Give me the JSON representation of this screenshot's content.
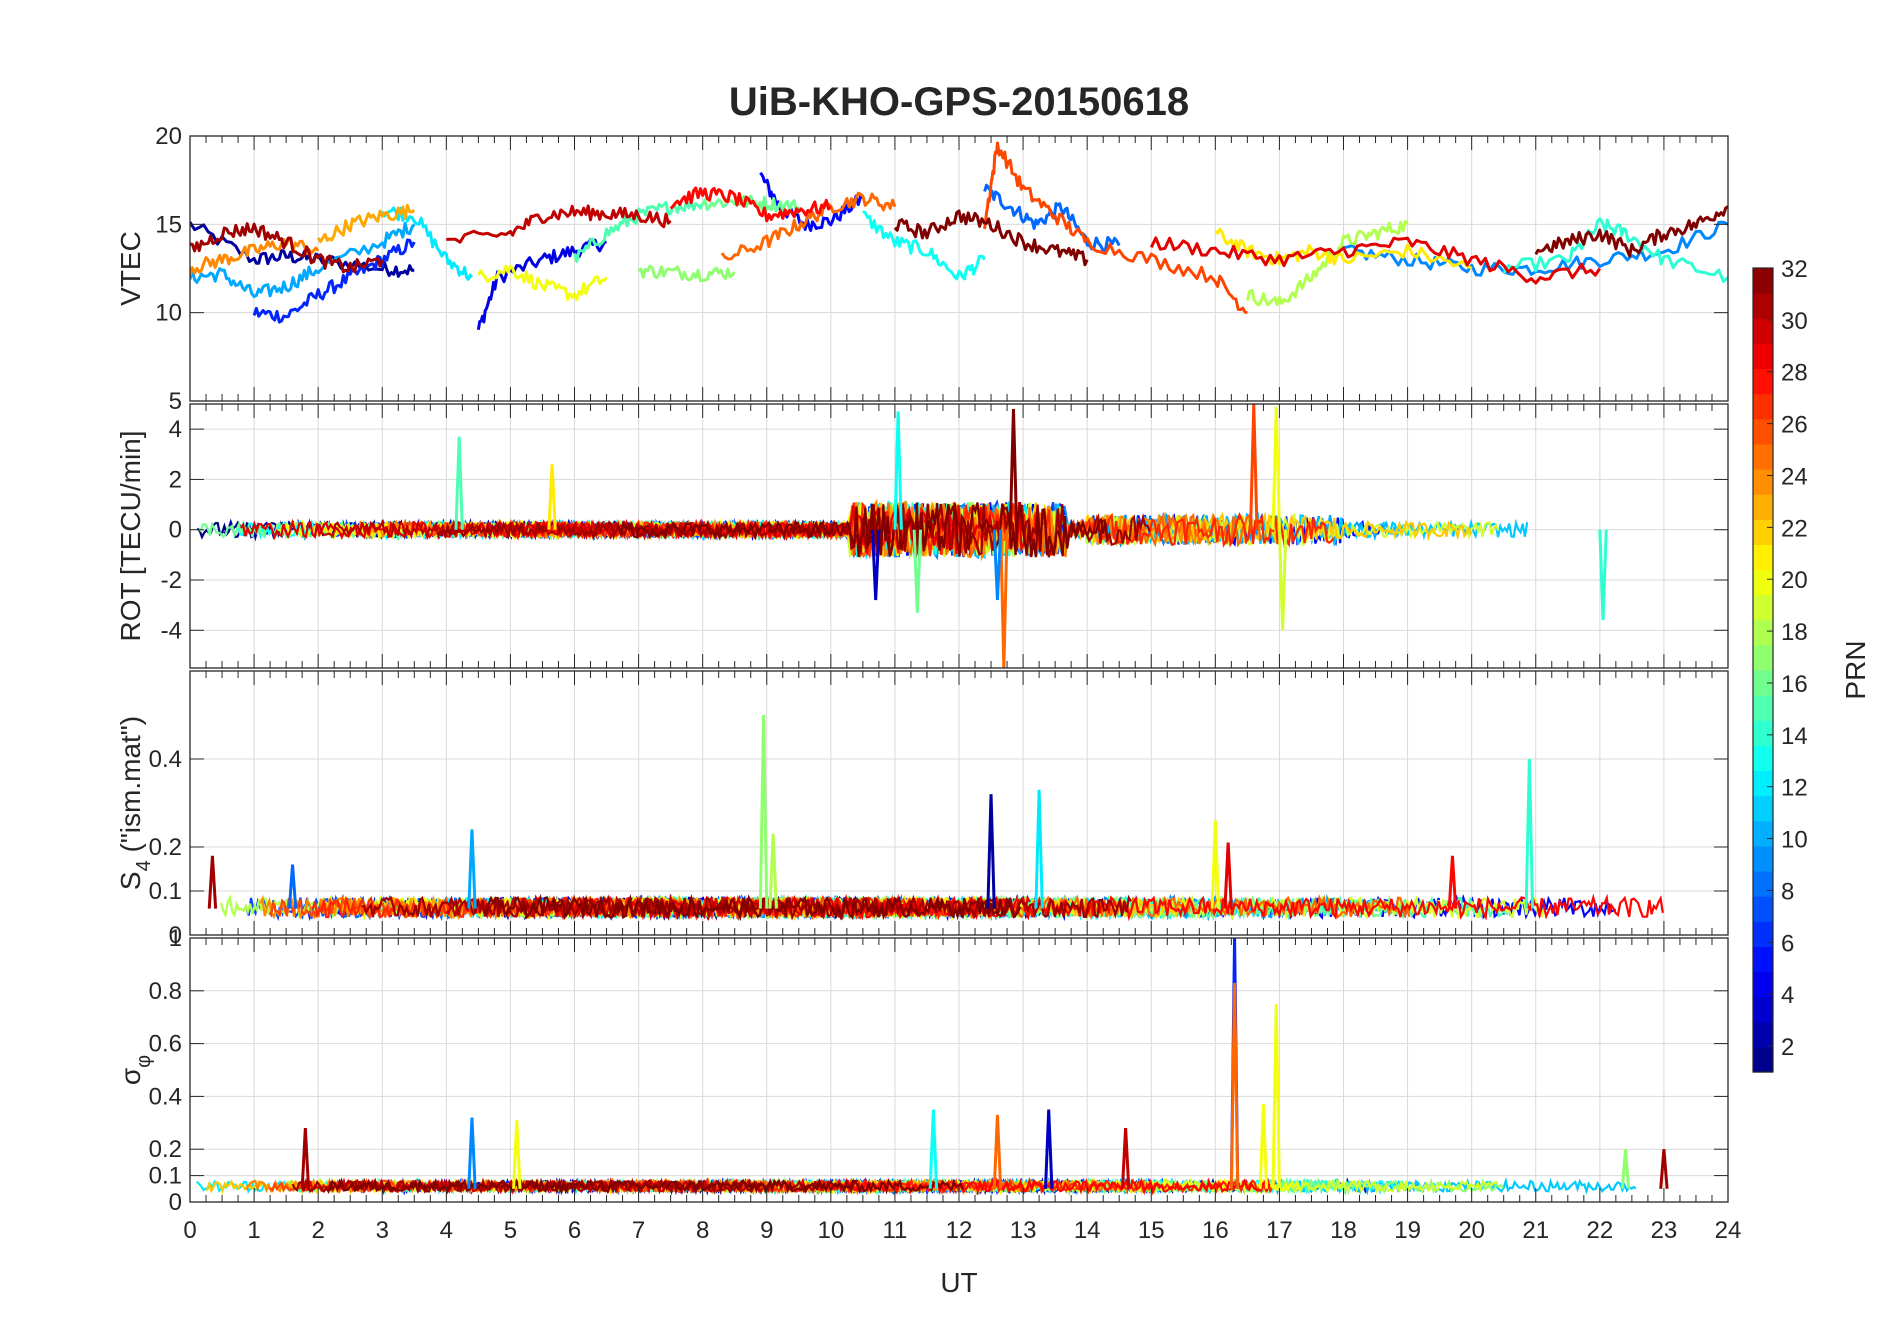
{
  "chart_data": {
    "type": "line",
    "title": "UiB-KHO-GPS-20150618",
    "xlabel": "UT",
    "xlim": [
      0,
      24
    ],
    "xticks": [
      0,
      1,
      2,
      3,
      4,
      5,
      6,
      7,
      8,
      9,
      10,
      11,
      12,
      13,
      14,
      15,
      16,
      17,
      18,
      19,
      20,
      21,
      22,
      23,
      24
    ],
    "xtick_labels": [
      "0",
      "1",
      "2",
      "3",
      "4",
      "5",
      "6",
      "7",
      "8",
      "9",
      "10",
      "11",
      "12",
      "13",
      "14",
      "15",
      "16",
      "17",
      "18",
      "19",
      "20",
      "21",
      "22",
      "23",
      "24"
    ],
    "grid": true,
    "colormap": "jet",
    "colorbar": {
      "label": "PRN",
      "range": [
        1,
        32
      ],
      "ticks": [
        2,
        4,
        6,
        8,
        10,
        12,
        14,
        16,
        18,
        20,
        22,
        24,
        26,
        28,
        30,
        32
      ],
      "tick_labels": [
        "2",
        "4",
        "6",
        "8",
        "10",
        "12",
        "14",
        "16",
        "18",
        "20",
        "22",
        "24",
        "26",
        "28",
        "30",
        "32"
      ]
    },
    "panels": [
      {
        "ylabel": "VTEC",
        "ylim": [
          5,
          20
        ],
        "yticks": [
          5,
          10,
          15,
          20
        ],
        "ytick_labels": [
          "5",
          "10",
          "15",
          "20"
        ],
        "series": [
          {
            "prn": 2,
            "x": [
              0,
              1,
              1.5,
              2,
              3,
              3.5
            ],
            "y": [
              15,
              13,
              13.2,
              13,
              12.5,
              12.4
            ]
          },
          {
            "prn": 4,
            "x": [
              4.5,
              4.8,
              5.5,
              6,
              6.5
            ],
            "y": [
              9,
              12,
              13,
              13.5,
              14
            ]
          },
          {
            "prn": 5,
            "x": [
              8.9,
              9.2,
              9.6,
              10,
              10.5
            ],
            "y": [
              17.8,
              16,
              15,
              15.2,
              16.5
            ]
          },
          {
            "prn": 6,
            "x": [
              1,
              1.5,
              2,
              2.5,
              3,
              3.5
            ],
            "y": [
              10,
              9.8,
              11,
              12,
              13,
              14
            ]
          },
          {
            "prn": 8,
            "x": [
              12.4,
              12.8,
              13.2,
              13.6,
              14,
              14.5
            ],
            "y": [
              17,
              16,
              15,
              16,
              14,
              13.8
            ]
          },
          {
            "prn": 9,
            "x": [
              18,
              19,
              20,
              21,
              22,
              23,
              24
            ],
            "y": [
              13.5,
              13,
              12.5,
              12.5,
              13,
              13.5,
              15
            ]
          },
          {
            "prn": 10,
            "x": [
              0,
              0.5,
              1,
              1.5,
              2,
              3,
              3.5
            ],
            "y": [
              12,
              12.2,
              11,
              11.5,
              12.5,
              14,
              15
            ]
          },
          {
            "prn": 12,
            "x": [
              3,
              3.5,
              4,
              4.4
            ],
            "y": [
              15.8,
              15.5,
              13,
              12
            ]
          },
          {
            "prn": 13,
            "x": [
              10.5,
              11,
              11.5,
              12,
              12.4
            ],
            "y": [
              15.5,
              14,
              13.5,
              12,
              13
            ]
          },
          {
            "prn": 14,
            "x": [
              20.5,
              21.5,
              22,
              22.4,
              23,
              24
            ],
            "y": [
              12.5,
              13,
              15,
              14.5,
              13,
              12
            ]
          },
          {
            "prn": 15,
            "x": [
              6,
              6.5,
              7,
              7.5,
              8
            ],
            "y": [
              13,
              14.5,
              15.5,
              16,
              16.2
            ]
          },
          {
            "prn": 16,
            "x": [
              8,
              8.5,
              9,
              9.5
            ],
            "y": [
              16.2,
              16.3,
              16.2,
              16
            ]
          },
          {
            "prn": 17,
            "x": [
              7,
              7.5,
              8,
              8.5
            ],
            "y": [
              12.4,
              12.3,
              12.2,
              12.3
            ]
          },
          {
            "prn": 18,
            "x": [
              16.5,
              17,
              17.5,
              18,
              18.5,
              19
            ],
            "y": [
              11,
              10.5,
              12,
              14,
              14.5,
              15
            ]
          },
          {
            "prn": 20,
            "x": [
              4.5,
              5,
              5.5,
              6,
              6.5
            ],
            "y": [
              12,
              12.5,
              11.5,
              11,
              12
            ]
          },
          {
            "prn": 21,
            "x": [
              16,
              16.5,
              17,
              17.5,
              18,
              19,
              20
            ],
            "y": [
              14.5,
              13.5,
              13,
              13.5,
              13,
              13.5,
              12.5
            ]
          },
          {
            "prn": 23,
            "x": [
              2,
              2.5,
              3,
              3.5
            ],
            "y": [
              14,
              15,
              15.5,
              15.8
            ]
          },
          {
            "prn": 24,
            "x": [
              0,
              0.5,
              1,
              1.5,
              2
            ],
            "y": [
              12.5,
              13,
              13.5,
              14,
              13.5
            ]
          },
          {
            "prn": 25,
            "x": [
              8.3,
              9,
              9.5,
              10,
              10.5,
              11
            ],
            "y": [
              13,
              14,
              15,
              16,
              16.5,
              16
            ]
          },
          {
            "prn": 26,
            "x": [
              12.4,
              12.6,
              13,
              13.5,
              14,
              15,
              16,
              16.5
            ],
            "y": [
              15,
              19.5,
              17,
              15.5,
              14,
              13,
              12,
              10
            ]
          },
          {
            "prn": 28,
            "x": [
              7.5,
              8,
              8.5,
              9,
              9.5,
              10
            ],
            "y": [
              16.2,
              16.8,
              16.5,
              15.5,
              15.8,
              16
            ]
          },
          {
            "prn": 29,
            "x": [
              15,
              16,
              17,
              18,
              19,
              20,
              21,
              22
            ],
            "y": [
              14,
              13.5,
              13,
              13.5,
              14,
              13,
              12,
              12.5
            ]
          },
          {
            "prn": 30,
            "x": [
              4,
              5,
              5.5,
              6,
              6.5,
              7,
              7.5
            ],
            "y": [
              14,
              14.5,
              15.5,
              15.7,
              15.6,
              15.5,
              15.2
            ]
          },
          {
            "prn": 31,
            "x": [
              0,
              0.5,
              1,
              1.5,
              2,
              2.5,
              3
            ],
            "y": [
              13.5,
              14.5,
              14.8,
              14,
              13,
              12.5,
              13
            ]
          },
          {
            "prn": 32,
            "x": [
              11,
              11.5,
              12,
              12.5,
              13,
              13.5,
              14
            ],
            "y": [
              15,
              14.5,
              15.5,
              15,
              14,
              13.5,
              13
            ]
          },
          {
            "prn": 32,
            "x": [
              21,
              21.5,
              22,
              22.5,
              23,
              23.5,
              24
            ],
            "y": [
              13.5,
              14,
              14.5,
              13.5,
              14.5,
              15,
              16
            ]
          }
        ]
      },
      {
        "ylabel": "ROT [TECU/min]",
        "ylim": [
          -5.5,
          5
        ],
        "yticks": [
          -4,
          -2,
          0,
          2,
          4
        ],
        "ytick_labels": [
          "-4",
          "-2",
          "0",
          "2",
          "4"
        ],
        "spikes": [
          {
            "prn": 15,
            "x": 4.2,
            "y": 3.7
          },
          {
            "prn": 21,
            "x": 5.65,
            "y": 2.6
          },
          {
            "prn": 13,
            "x": 11.05,
            "y": 4.7
          },
          {
            "prn": 16,
            "x": 11.35,
            "y": -3.3
          },
          {
            "prn": 32,
            "x": 12.85,
            "y": 4.8
          },
          {
            "prn": 25,
            "x": 12.7,
            "y": -5.5
          },
          {
            "prn": 26,
            "x": 16.6,
            "y": 5.0
          },
          {
            "prn": 20,
            "x": 16.95,
            "y": 4.9
          },
          {
            "prn": 19,
            "x": 17.05,
            "y": -4.0
          },
          {
            "prn": 14,
            "x": 22.05,
            "y": -3.6
          },
          {
            "prn": 9,
            "x": 12.6,
            "y": -2.8
          },
          {
            "prn": 3,
            "x": 10.7,
            "y": -2.8
          }
        ]
      },
      {
        "ylabel": "S4 (\"ism.mat\")",
        "ylabel_main": "S",
        "ylabel_sub": "4",
        "ylabel_rest": " (\"ism.mat\")",
        "ylim": [
          0,
          0.6
        ],
        "yticks": [
          0.1,
          0.2,
          0.4
        ],
        "ytick_labels": [
          "0.1",
          "0.2",
          "0.4"
        ],
        "baseline_label": "0",
        "spikes": [
          {
            "prn": 31,
            "x": 0.35,
            "y": 0.18
          },
          {
            "prn": 8,
            "x": 1.6,
            "y": 0.16
          },
          {
            "prn": 10,
            "x": 4.4,
            "y": 0.24
          },
          {
            "prn": 17,
            "x": 8.95,
            "y": 0.5
          },
          {
            "prn": 18,
            "x": 9.1,
            "y": 0.23
          },
          {
            "prn": 2,
            "x": 12.5,
            "y": 0.32
          },
          {
            "prn": 12,
            "x": 13.25,
            "y": 0.33
          },
          {
            "prn": 20,
            "x": 16.0,
            "y": 0.26
          },
          {
            "prn": 29,
            "x": 16.2,
            "y": 0.21
          },
          {
            "prn": 14,
            "x": 20.9,
            "y": 0.4
          },
          {
            "prn": 28,
            "x": 19.7,
            "y": 0.18
          }
        ]
      },
      {
        "ylabel": "σφ",
        "ylabel_main": "σ",
        "ylabel_sub": "φ",
        "ylim": [
          0,
          1
        ],
        "yticks": [
          0,
          0.1,
          0.2,
          0.4,
          0.6,
          0.8
        ],
        "ytick_labels": [
          "0",
          "0.1",
          "0.2",
          "0.4",
          "0.6",
          "0.8"
        ],
        "top_label": "1",
        "spikes": [
          {
            "prn": 31,
            "x": 1.8,
            "y": 0.28
          },
          {
            "prn": 9,
            "x": 4.4,
            "y": 0.32
          },
          {
            "prn": 20,
            "x": 5.1,
            "y": 0.31
          },
          {
            "prn": 13,
            "x": 11.6,
            "y": 0.35
          },
          {
            "prn": 25,
            "x": 12.6,
            "y": 0.33
          },
          {
            "prn": 3,
            "x": 13.4,
            "y": 0.35
          },
          {
            "prn": 30,
            "x": 14.6,
            "y": 0.28
          },
          {
            "prn": 6,
            "x": 16.3,
            "y": 1.0
          },
          {
            "prn": 25,
            "x": 16.3,
            "y": 0.83
          },
          {
            "prn": 20,
            "x": 16.95,
            "y": 0.75
          },
          {
            "prn": 20,
            "x": 16.75,
            "y": 0.37
          },
          {
            "prn": 17,
            "x": 22.4,
            "y": 0.2
          },
          {
            "prn": 31,
            "x": 23.0,
            "y": 0.2
          }
        ]
      }
    ]
  }
}
